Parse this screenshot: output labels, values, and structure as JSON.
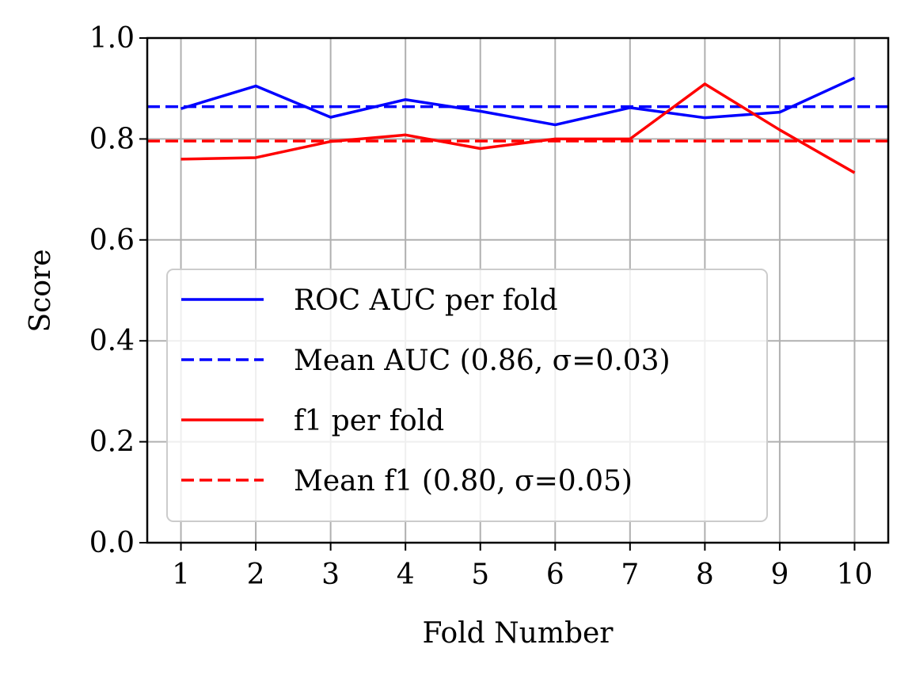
{
  "chart_data": {
    "type": "line",
    "title": "",
    "xlabel": "Fold Number",
    "ylabel": "Score",
    "x": [
      1,
      2,
      3,
      4,
      5,
      6,
      7,
      8,
      9,
      10
    ],
    "xlim": [
      0.55,
      10.45
    ],
    "ylim": [
      0.0,
      1.0
    ],
    "x_ticks": [
      "1",
      "2",
      "3",
      "4",
      "5",
      "6",
      "7",
      "8",
      "9",
      "10"
    ],
    "y_ticks": [
      "0.0",
      "0.2",
      "0.4",
      "0.6",
      "0.8",
      "1.0"
    ],
    "y_tick_values": [
      0.0,
      0.2,
      0.4,
      0.6,
      0.8,
      1.0
    ],
    "grid": true,
    "legend_position": "lower-left",
    "series": [
      {
        "name": "ROC AUC per fold",
        "legend_label": "ROC AUC per fold",
        "color": "#0000ff",
        "style": "solid",
        "values": [
          0.86,
          0.905,
          0.843,
          0.878,
          0.855,
          0.828,
          0.862,
          0.842,
          0.853,
          0.921
        ]
      },
      {
        "name": "Mean AUC",
        "legend_label": "Mean AUC (0.86, σ=0.03)",
        "color": "#0000ff",
        "style": "dashed",
        "constant": 0.864
      },
      {
        "name": "f1 per fold",
        "legend_label": "f1 per fold",
        "color": "#ff0000",
        "style": "solid",
        "values": [
          0.76,
          0.763,
          0.795,
          0.808,
          0.781,
          0.8,
          0.8,
          0.909,
          0.818,
          0.733
        ]
      },
      {
        "name": "Mean f1",
        "legend_label": "Mean f1 (0.80, σ=0.05)",
        "color": "#ff0000",
        "style": "dashed",
        "constant": 0.796
      }
    ]
  }
}
